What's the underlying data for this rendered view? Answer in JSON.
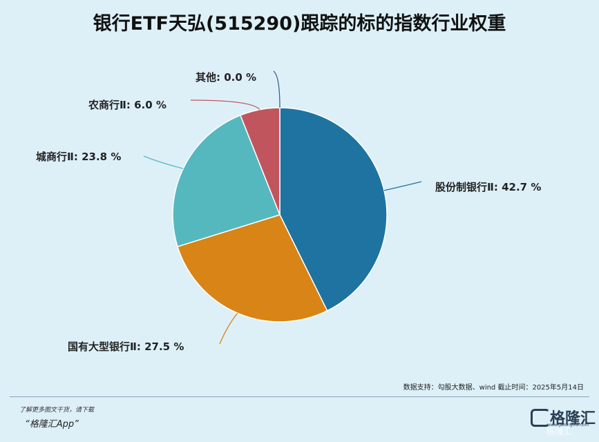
{
  "title": "银行ETF天弘(515290)跟踪的标的指数行业权重",
  "chart_data": {
    "type": "pie",
    "title": "银行ETF天弘(515290)跟踪的标的指数行业权重",
    "slices": [
      {
        "label": "股份制银行Ⅱ",
        "value": 42.7,
        "display": "42.7 %",
        "color": "#1e73a1"
      },
      {
        "label": "国有大型银行Ⅱ",
        "value": 27.5,
        "display": "27.5 %",
        "color": "#d88416"
      },
      {
        "label": "城商行Ⅱ",
        "value": 23.8,
        "display": "23.8 %",
        "color": "#55b8bf"
      },
      {
        "label": "农商行Ⅱ",
        "value": 6.0,
        "display": "6.0 %",
        "color": "#c1555e"
      },
      {
        "label": "其他",
        "value": 0.0,
        "display": "0.0 %",
        "color": "#3b5f8a"
      }
    ],
    "legend": "none"
  },
  "watermark": {
    "brand": "格隆汇",
    "partner": "勾股大数据",
    "partner_url": "www.gogudata.com",
    "brand_url": "www.gelonghui.com"
  },
  "source_text": "数据支持：勾股大数据、wind   截止时间：2025年5月14日",
  "footer": {
    "promo": "了解更多图文干货，请下载",
    "app": "“格隆汇App”",
    "brand": "格隆汇",
    "brand_url": "www.gelonghui.com",
    "corner_watermark": "格隆汇"
  }
}
